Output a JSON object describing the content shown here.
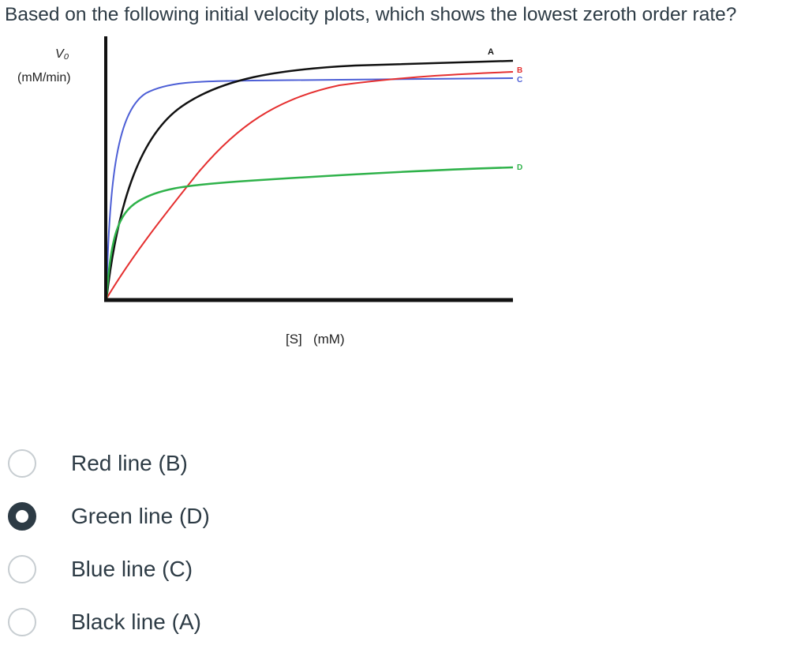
{
  "question": {
    "text": "Based on the following initial velocity plots, which shows the lowest zeroth order rate?"
  },
  "figure": {
    "y_label": "V₀",
    "y_units": "(mM/min)",
    "x_label": "[S]   (mM)",
    "curve_labels": {
      "A": "A",
      "B": "B",
      "C": "C",
      "D": "D"
    },
    "colors": {
      "A": "#111111",
      "B": "#e53030",
      "C": "#4d5fd6",
      "D": "#2fb24a",
      "axes": "#111111"
    }
  },
  "options": [
    {
      "label": "Red line (B)",
      "selected": false
    },
    {
      "label": "Green line (D)",
      "selected": true
    },
    {
      "label": "Blue line (C)",
      "selected": false
    },
    {
      "label": "Black line (A)",
      "selected": false
    }
  ]
}
